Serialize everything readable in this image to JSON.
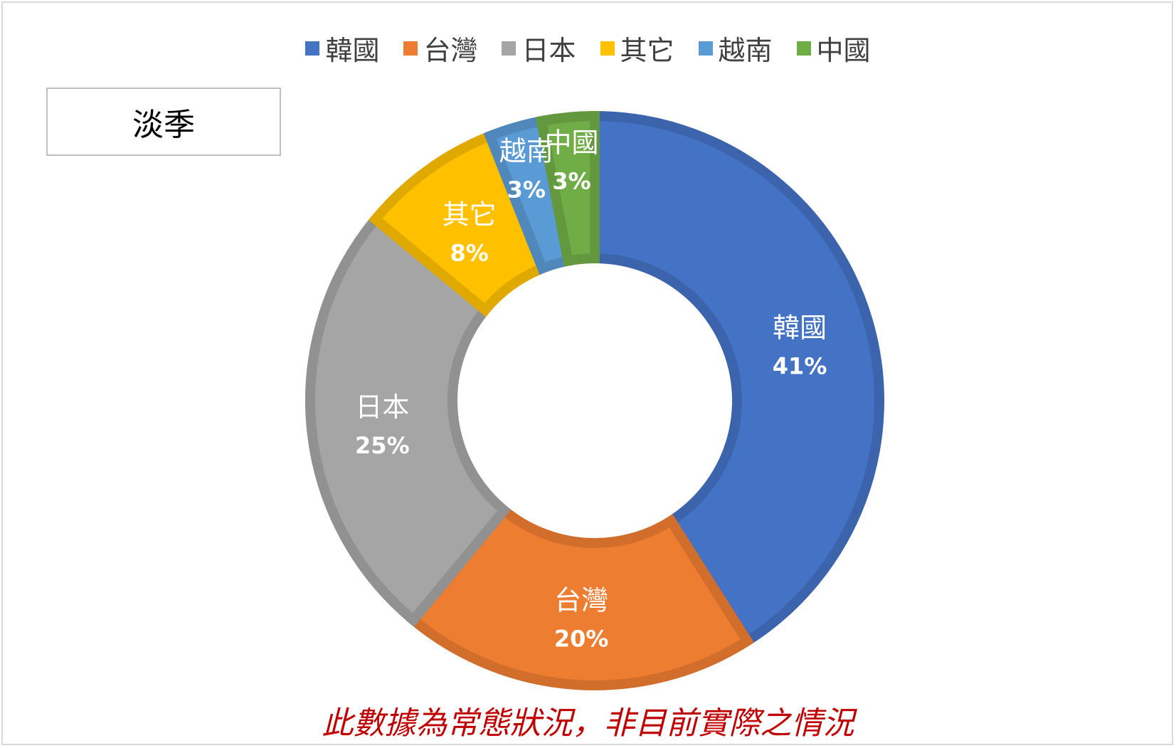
{
  "season_label": "淡季",
  "footnote": "此數據為常態狀況，非目前實際之情況",
  "chart_data": {
    "type": "pie",
    "subtype": "donut",
    "legend_position": "top",
    "categories": [
      "韓國",
      "台灣",
      "日本",
      "其它",
      "越南",
      "中國"
    ],
    "values": [
      41,
      20,
      25,
      8,
      3,
      3
    ],
    "labels": [
      "41%",
      "20%",
      "25%",
      "8%",
      "3%",
      "3%"
    ],
    "colors": [
      "#4472C4",
      "#ED7D31",
      "#A5A5A5",
      "#FFC000",
      "#5B9BD5",
      "#70AD47"
    ]
  }
}
